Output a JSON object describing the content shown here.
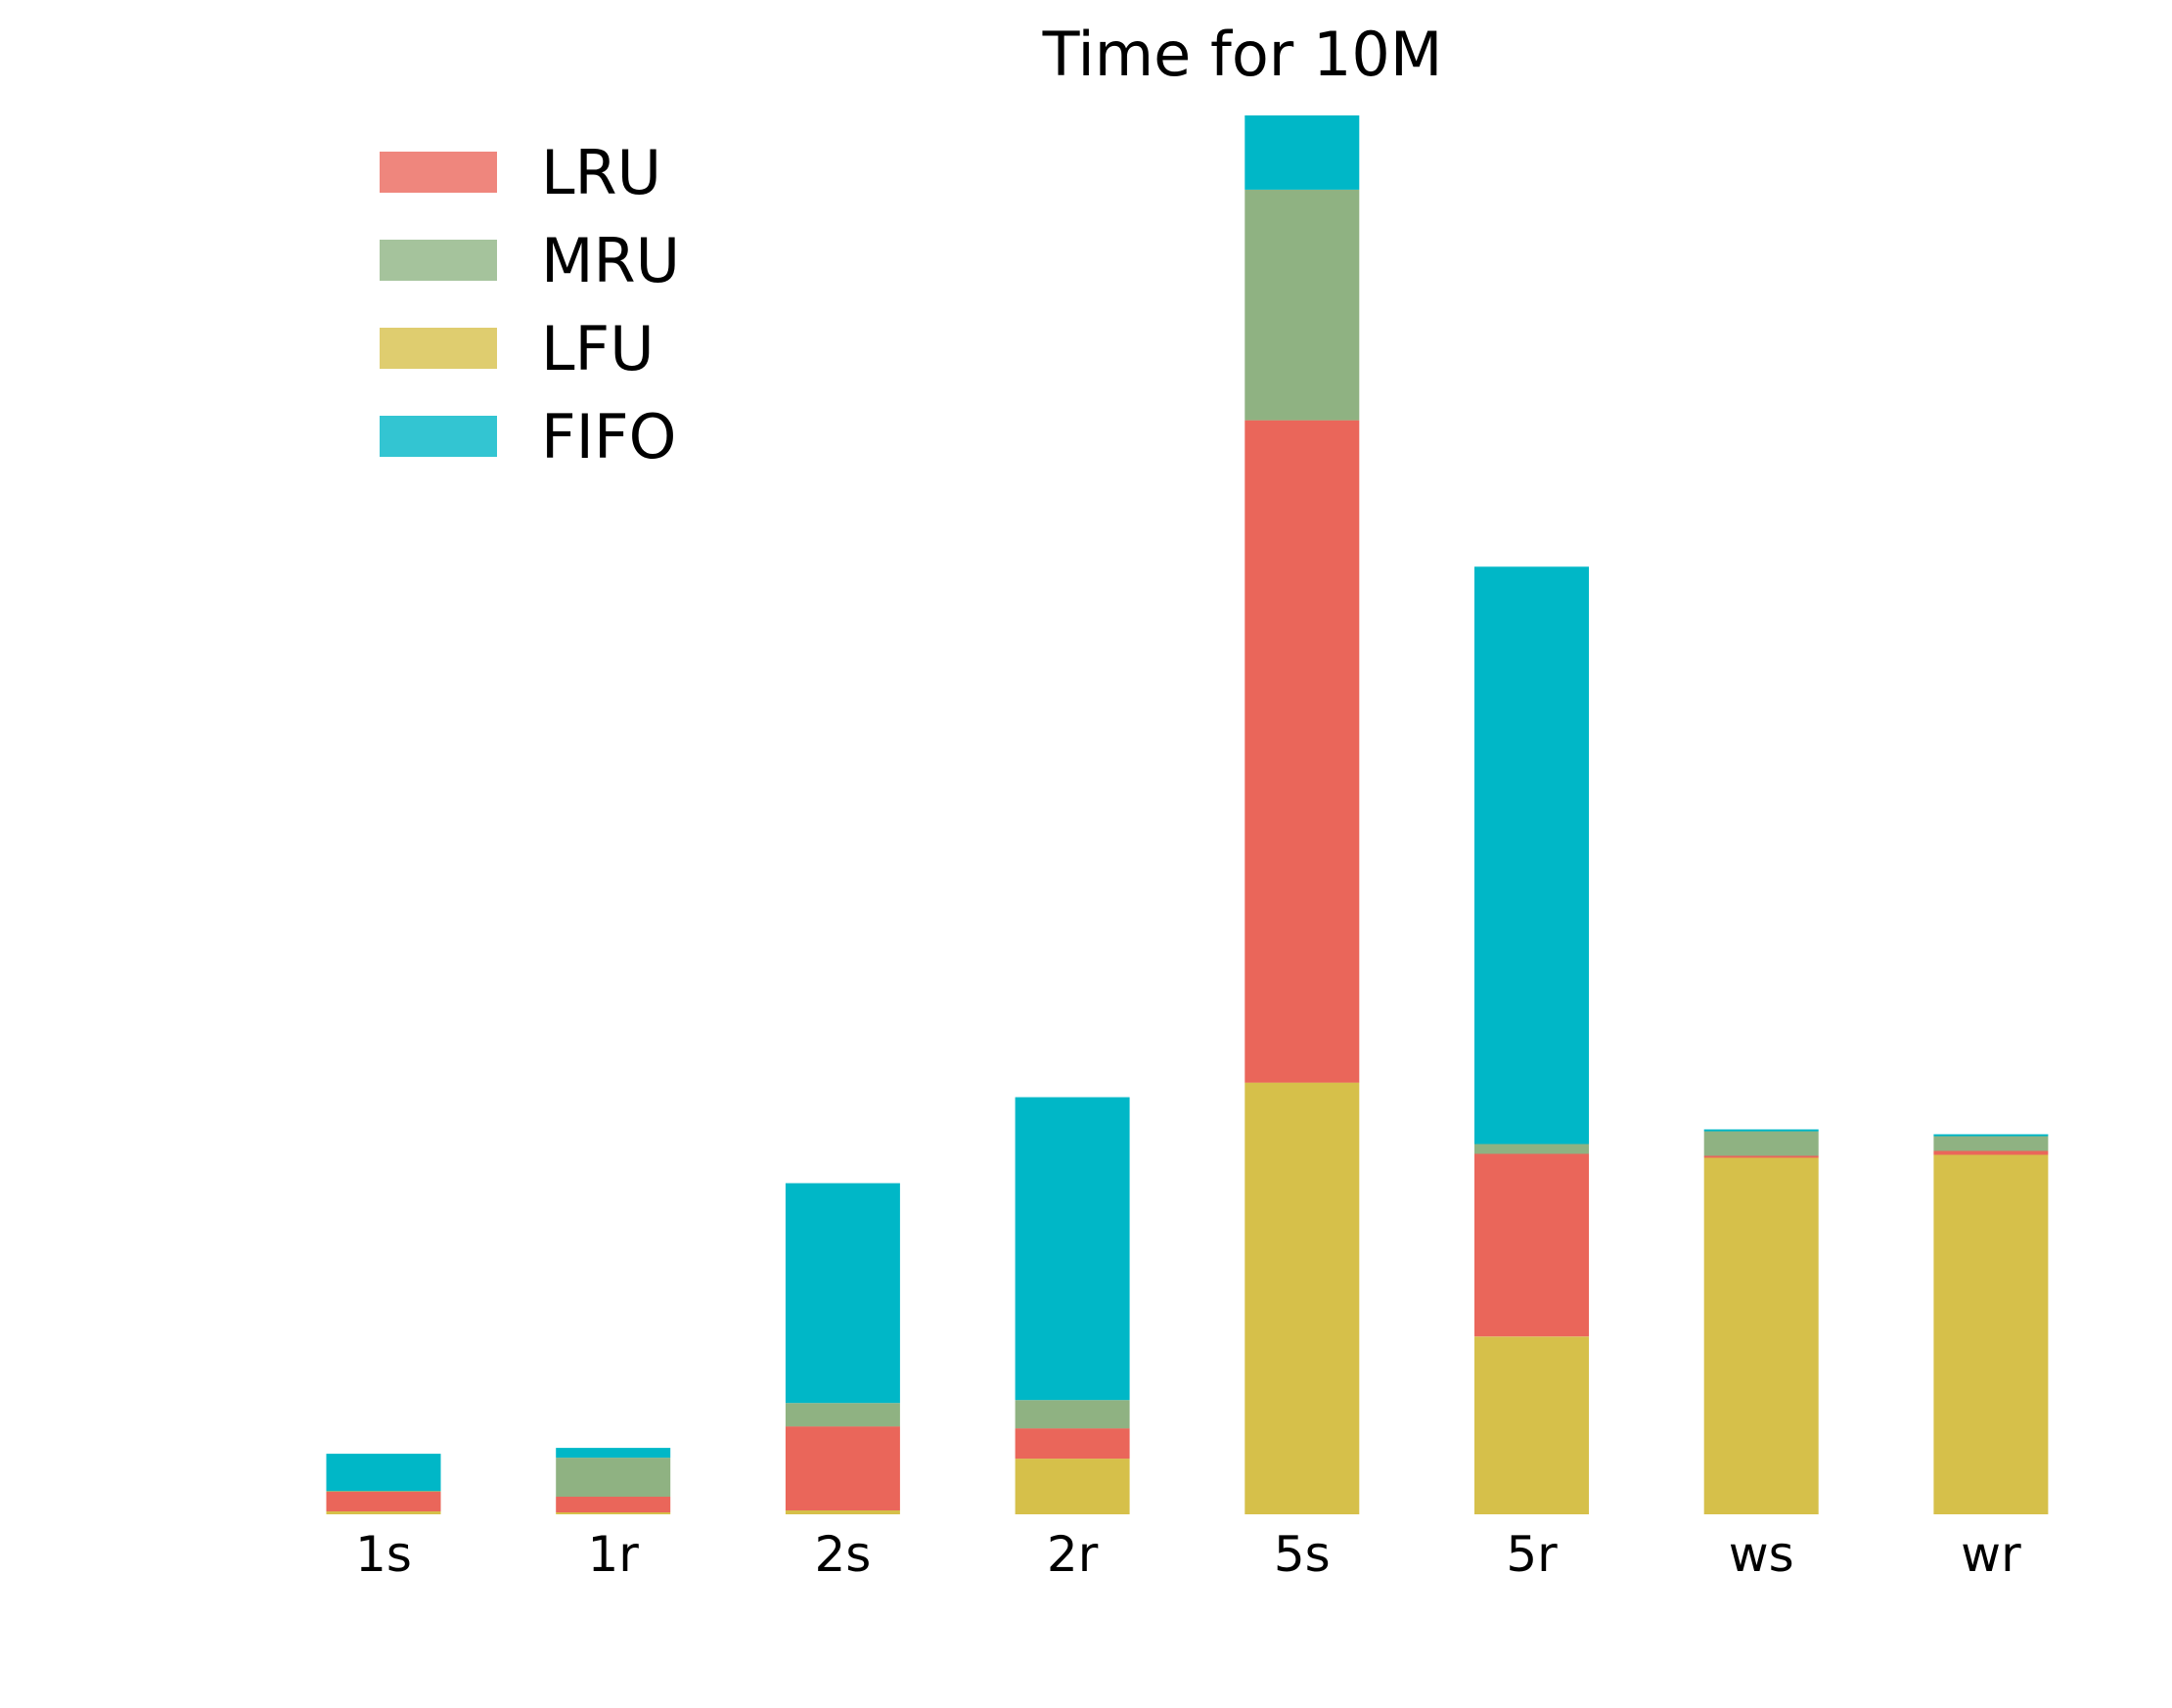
{
  "chart_data": {
    "type": "bar",
    "stacked": true,
    "title": "Time for 10M",
    "xlabel": "",
    "ylabel": "",
    "categories": [
      "1s",
      "1r",
      "2s",
      "2r",
      "5s",
      "5r",
      "ws",
      "wr"
    ],
    "stack_order": [
      "LFU",
      "LRU",
      "MRU",
      "FIFO"
    ],
    "series": [
      {
        "name": "LRU",
        "color": "#ea665a",
        "legend_color": "#ef867d",
        "values": [
          2.0,
          1.6,
          8.6,
          3.1,
          67.8,
          18.7,
          0.2,
          0.4
        ]
      },
      {
        "name": "MRU",
        "color": "#8fb282",
        "legend_color": "#a5c39c",
        "values": [
          0.1,
          4.0,
          2.4,
          2.9,
          23.6,
          1.0,
          2.5,
          1.5
        ]
      },
      {
        "name": "LFU",
        "color": "#d6c04a",
        "legend_color": "#dfcd6f",
        "values": [
          0.3,
          0.2,
          0.4,
          5.7,
          44.2,
          18.2,
          36.5,
          36.8
        ]
      },
      {
        "name": "FIFO",
        "color": "#00b7c7",
        "legend_color": "#33c5d2",
        "values": [
          3.8,
          1.0,
          22.5,
          31.0,
          7.6,
          59.1,
          0.2,
          0.2
        ]
      }
    ],
    "ylim": [
      0,
      144
    ],
    "grid": false,
    "legend_position": "top-left"
  }
}
